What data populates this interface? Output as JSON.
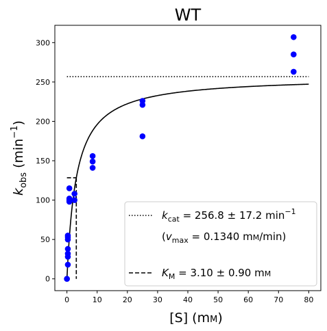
{
  "chart_data": {
    "type": "scatter",
    "title": "WT",
    "xlabel": {
      "main": "[S] (m",
      "smallcaps": "M",
      "close": ")"
    },
    "ylabel": {
      "main": "k",
      "sub": "obs",
      "unit_open": " (min",
      "sup": "−1",
      "close": ")"
    },
    "xlim": [
      -4,
      84
    ],
    "ylim": [
      -15,
      322
    ],
    "xticks": [
      0,
      10,
      20,
      30,
      40,
      50,
      60,
      70,
      80
    ],
    "yticks": [
      0,
      50,
      100,
      150,
      200,
      250,
      300
    ],
    "grid": false,
    "legend_position": "lower-right",
    "series": [
      {
        "kind": "scatter",
        "color": "#0000ff",
        "x": [
          0,
          0,
          0.3,
          0.3,
          0.3,
          0.3,
          0.3,
          0.3,
          0.3,
          0.8,
          0.8,
          0.8,
          0.8,
          2.5,
          2.5,
          8.5,
          8.5,
          8.5,
          25,
          25,
          25,
          75,
          75,
          75
        ],
        "y": [
          0,
          0,
          18,
          28,
          32,
          38,
          50,
          53,
          55,
          98,
          100,
          102,
          115,
          100,
          108,
          141,
          149,
          156,
          181,
          221,
          226,
          263,
          285,
          307
        ]
      },
      {
        "kind": "fit-line",
        "color": "#000000",
        "kcat": 256.8,
        "km": 3.1,
        "x_range": [
          0,
          80
        ]
      },
      {
        "kind": "kcat-line",
        "style": "dotted",
        "color": "#000000",
        "y": 256.8,
        "x_range": [
          0,
          80
        ]
      },
      {
        "kind": "km-lines",
        "style": "dashed",
        "color": "#000000",
        "x": 3.1,
        "y": 128.4,
        "x_start": 0
      }
    ],
    "legend": {
      "kcat": {
        "sym": "k",
        "sub": "cat",
        "value": " = 256.8 ± 17.2 min",
        "sup": "−1"
      },
      "vmax": {
        "open": "(",
        "sym": "v",
        "sub": "max",
        "value": " = 0.1340 m",
        "smallcaps": "M",
        "close": "/min)"
      },
      "km": {
        "sym": "K",
        "sub": "M",
        "value": " = 3.10 ± 0.90 m",
        "smallcaps": "M"
      }
    }
  }
}
